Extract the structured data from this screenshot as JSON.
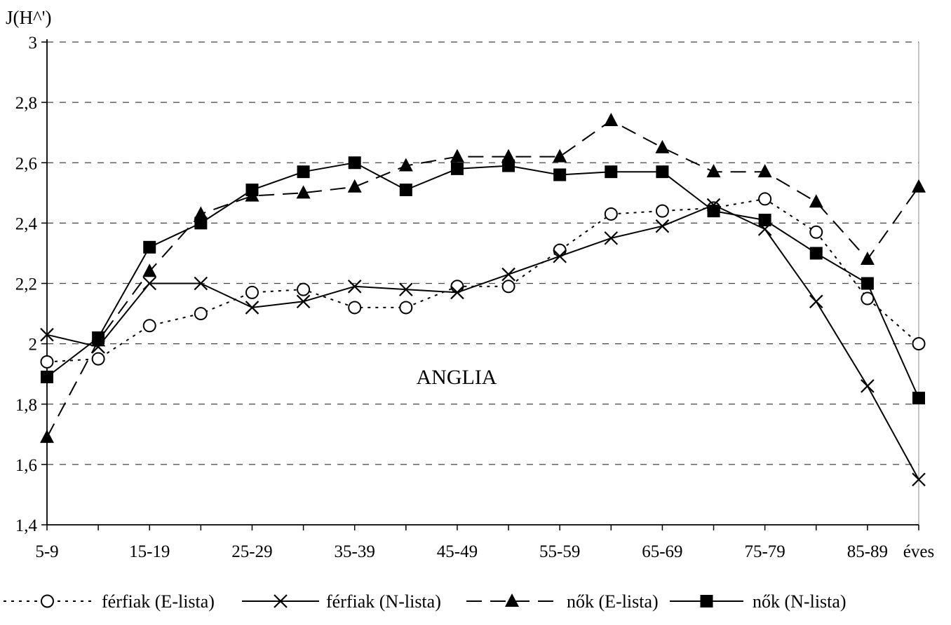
{
  "chart_data": {
    "type": "line",
    "ylabel": "J(H^')",
    "annotation": "ANGLIA",
    "x_tick_labels": [
      "5-9",
      "15-19",
      "25-29",
      "35-39",
      "45-49",
      "55-59",
      "65-69",
      "75-79",
      "85-89",
      "éves"
    ],
    "x_tick_positions": [
      0,
      2,
      4,
      6,
      8,
      10,
      12,
      14,
      16,
      17
    ],
    "y_tick_labels": [
      "1,4",
      "1,6",
      "1,8",
      "2",
      "2,2",
      "2,4",
      "2,6",
      "2,8",
      "3"
    ],
    "ylim": [
      1.4,
      3.0
    ],
    "y_step": 0.2,
    "grid": "horizontal dashed",
    "legend_position": "bottom",
    "series": [
      {
        "name": "férfiak (E-lista)",
        "line_style": "dotted",
        "marker": "open-circle",
        "values": [
          1.94,
          1.95,
          2.06,
          2.1,
          2.17,
          2.18,
          2.12,
          2.12,
          2.19,
          2.19,
          2.31,
          2.43,
          2.44,
          2.45,
          2.48,
          2.37,
          2.15,
          2.0
        ]
      },
      {
        "name": "férfiak (N-lista)",
        "line_style": "solid",
        "marker": "x",
        "values": [
          2.03,
          1.99,
          2.2,
          2.2,
          2.12,
          2.14,
          2.19,
          2.18,
          2.17,
          2.23,
          2.29,
          2.35,
          2.39,
          2.46,
          2.38,
          2.14,
          1.86,
          1.55
        ]
      },
      {
        "name": "nők (E-lista)",
        "line_style": "dashed",
        "marker": "filled-triangle",
        "values": [
          1.69,
          2.01,
          2.24,
          2.43,
          2.49,
          2.5,
          2.52,
          2.59,
          2.62,
          2.62,
          2.62,
          2.74,
          2.65,
          2.57,
          2.57,
          2.47,
          2.28,
          2.52
        ]
      },
      {
        "name": "nők (N-lista)",
        "line_style": "solid",
        "marker": "filled-square",
        "values": [
          1.89,
          2.02,
          2.32,
          2.4,
          2.51,
          2.57,
          2.6,
          2.51,
          2.58,
          2.59,
          2.56,
          2.57,
          2.57,
          2.44,
          2.41,
          2.3,
          2.2,
          1.82
        ]
      }
    ]
  }
}
